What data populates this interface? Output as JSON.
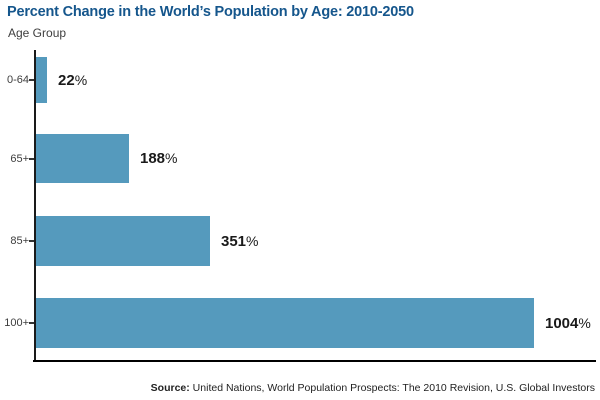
{
  "chart_data": {
    "type": "bar",
    "orientation": "horizontal",
    "title": "Percent Change in the World’s Population by Age: 2010-2050",
    "ylabel": "Age Group",
    "categories": [
      "0-64",
      "65+",
      "85+",
      "100+"
    ],
    "values": [
      22,
      188,
      351,
      1004
    ],
    "value_labels": [
      "22%",
      "188%",
      "351%",
      "1004%"
    ],
    "percent_sign": "%",
    "xlim": [
      0,
      1130
    ],
    "grid": false,
    "legend": false,
    "source": {
      "prefix": "Source:",
      "text": " United Nations, World Population Prospects: The 2010 Revision, U.S. Global Investors"
    },
    "colors": {
      "bar": "#559ABD",
      "title": "#15568C",
      "axis": "#000000",
      "category_label": "#3E3E3E",
      "value_label": "#1A1A1A"
    }
  }
}
